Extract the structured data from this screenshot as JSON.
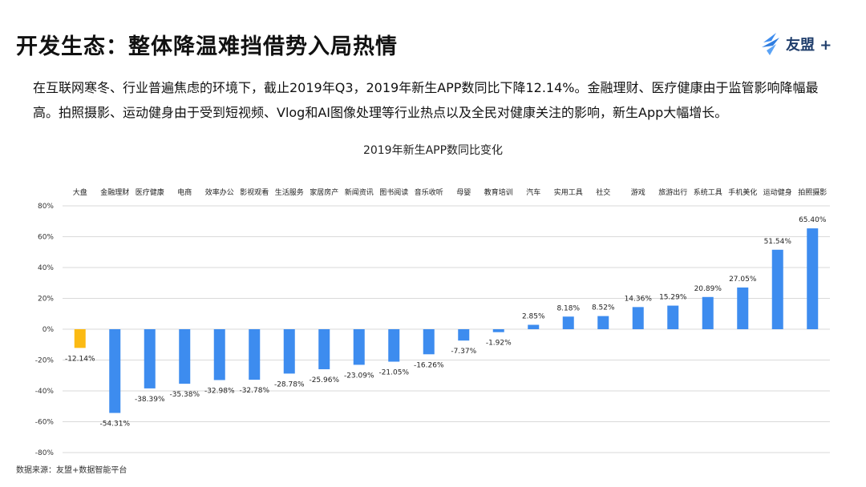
{
  "header": {
    "title": "开发生态：整体降温难挡借势入局热情",
    "logo_text": "友盟 +"
  },
  "intro_text": "在互联网寒冬、行业普遍焦虑的环境下，截止2019年Q3，2019年新生APP数同比下降12.14%。金融理财、医疗健康由于监管影响降幅最高。拍照摄影、运动健身由于受到短视频、Vlog和AI图像处理等行业热点以及全民对健康关注的影响，新生App大幅增长。",
  "source": "数据来源：友盟+数据智能平台",
  "colors": {
    "highlight": "#FBBA13",
    "bar": "#3D8CEF",
    "grid": "#DADADA"
  },
  "chart_data": {
    "type": "bar",
    "title": "2019年新生APP数同比变化",
    "categories": [
      "大盘",
      "金融理财",
      "医疗健康",
      "电商",
      "效率办公",
      "影视观看",
      "生活服务",
      "家居房产",
      "新闻资讯",
      "图书阅读",
      "音乐收听",
      "母婴",
      "教育培训",
      "汽车",
      "实用工具",
      "社交",
      "游戏",
      "旅游出行",
      "系统工具",
      "手机美化",
      "运动健身",
      "拍照摄影"
    ],
    "values": [
      -12.14,
      -54.31,
      -38.39,
      -35.38,
      -32.98,
      -32.78,
      -28.78,
      -25.96,
      -23.09,
      -21.05,
      -16.26,
      -7.37,
      -1.92,
      2.85,
      8.18,
      8.52,
      14.36,
      15.29,
      20.89,
      27.05,
      51.54,
      65.4
    ],
    "value_labels": [
      "-12.14%",
      "-54.31%",
      "-38.39%",
      "-35.38%",
      "-32.98%",
      "-32.78%",
      "-28.78%",
      "-25.96%",
      "-23.09%",
      "-21.05%",
      "-16.26%",
      "-7.37%",
      "-1.92%",
      "2.85%",
      "8.18%",
      "8.52%",
      "14.36%",
      "15.29%",
      "20.89%",
      "27.05%",
      "51.54%",
      "65.40%"
    ],
    "highlight_index": 0,
    "ylim": [
      -80,
      80
    ],
    "yticks": [
      -80,
      -60,
      -40,
      -20,
      0,
      20,
      40,
      60,
      80
    ],
    "ytick_labels": [
      "-80%",
      "-60%",
      "-40%",
      "-20%",
      "0%",
      "20%",
      "40%",
      "60%",
      "80%"
    ],
    "grid": true,
    "legend": "none",
    "category_labels_position": "top"
  }
}
